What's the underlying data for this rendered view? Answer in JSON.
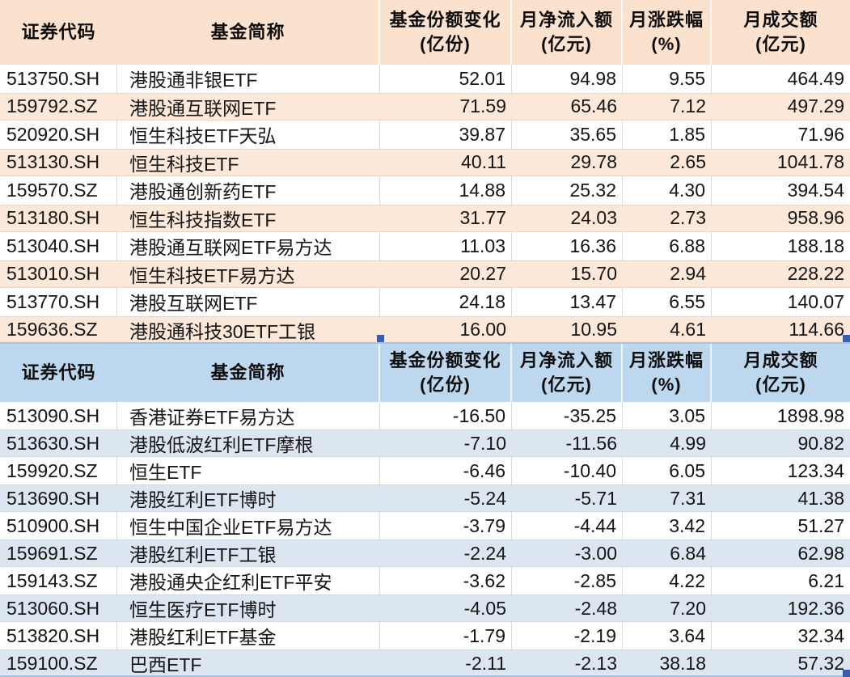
{
  "colors": {
    "table1_header_bg": "#fbe2cf",
    "table1_stripe_bg": "#fce8d9",
    "table1_stripe_border": "#ecd4c2",
    "table2_header_bg": "#bdd7ee",
    "table2_stripe_bg": "#dce6f1",
    "table2_stripe_border": "#c8d6e5",
    "gridline": "#d9d9d9",
    "selection_line": "#9dc3e6",
    "selection_handle": "#3c5ea9"
  },
  "columns": [
    {
      "key": "code",
      "label": "证券代码",
      "label2": ""
    },
    {
      "key": "name",
      "label": "基金简称",
      "label2": ""
    },
    {
      "key": "share_change",
      "label": "基金份额变化",
      "label2": "(亿份)"
    },
    {
      "key": "net_inflow",
      "label": "月净流入额",
      "label2": "(亿元)"
    },
    {
      "key": "pct_change",
      "label": "月涨跌幅",
      "label2": "(%)"
    },
    {
      "key": "turnover",
      "label": "月成交额",
      "label2": "(亿元)"
    }
  ],
  "tables": [
    {
      "name": "monthly-inflow-table",
      "rows": [
        {
          "code": "513750.SH",
          "name": "港股通非银ETF",
          "share_change": "52.01",
          "net_inflow": "94.98",
          "pct_change": "9.55",
          "turnover": "464.49"
        },
        {
          "code": "159792.SZ",
          "name": "港股通互联网ETF",
          "share_change": "71.59",
          "net_inflow": "65.46",
          "pct_change": "7.12",
          "turnover": "497.29"
        },
        {
          "code": "520920.SH",
          "name": "恒生科技ETF天弘",
          "share_change": "39.87",
          "net_inflow": "35.65",
          "pct_change": "1.85",
          "turnover": "71.96"
        },
        {
          "code": "513130.SH",
          "name": "恒生科技ETF",
          "share_change": "40.11",
          "net_inflow": "29.78",
          "pct_change": "2.65",
          "turnover": "1041.78"
        },
        {
          "code": "159570.SZ",
          "name": "港股通创新药ETF",
          "share_change": "14.88",
          "net_inflow": "25.32",
          "pct_change": "4.30",
          "turnover": "394.54"
        },
        {
          "code": "513180.SH",
          "name": "恒生科技指数ETF",
          "share_change": "31.77",
          "net_inflow": "24.03",
          "pct_change": "2.73",
          "turnover": "958.96"
        },
        {
          "code": "513040.SH",
          "name": "港股通互联网ETF易方达",
          "share_change": "11.03",
          "net_inflow": "16.36",
          "pct_change": "6.88",
          "turnover": "188.18"
        },
        {
          "code": "513010.SH",
          "name": "恒生科技ETF易方达",
          "share_change": "20.27",
          "net_inflow": "15.70",
          "pct_change": "2.94",
          "turnover": "228.22"
        },
        {
          "code": "513770.SH",
          "name": "港股互联网ETF",
          "share_change": "24.18",
          "net_inflow": "13.47",
          "pct_change": "6.55",
          "turnover": "140.07"
        },
        {
          "code": "159636.SZ",
          "name": "港股通科技30ETF工银",
          "share_change": "16.00",
          "net_inflow": "10.95",
          "pct_change": "4.61",
          "turnover": "114.66"
        }
      ]
    },
    {
      "name": "monthly-outflow-table",
      "rows": [
        {
          "code": "513090.SH",
          "name": "香港证券ETF易方达",
          "share_change": "-16.50",
          "net_inflow": "-35.25",
          "pct_change": "3.05",
          "turnover": "1898.98"
        },
        {
          "code": "513630.SH",
          "name": "港股低波红利ETF摩根",
          "share_change": "-7.10",
          "net_inflow": "-11.56",
          "pct_change": "4.99",
          "turnover": "90.82"
        },
        {
          "code": "159920.SZ",
          "name": "恒生ETF",
          "share_change": "-6.46",
          "net_inflow": "-10.40",
          "pct_change": "6.05",
          "turnover": "123.34"
        },
        {
          "code": "513690.SH",
          "name": "港股红利ETF博时",
          "share_change": "-5.24",
          "net_inflow": "-5.71",
          "pct_change": "7.31",
          "turnover": "41.38"
        },
        {
          "code": "510900.SH",
          "name": "恒生中国企业ETF易方达",
          "share_change": "-3.79",
          "net_inflow": "-4.44",
          "pct_change": "3.42",
          "turnover": "51.27"
        },
        {
          "code": "159691.SZ",
          "name": "港股红利ETF工银",
          "share_change": "-2.24",
          "net_inflow": "-3.00",
          "pct_change": "6.84",
          "turnover": "62.98"
        },
        {
          "code": "159143.SZ",
          "name": "港股通央企红利ETF平安",
          "share_change": "-3.62",
          "net_inflow": "-2.85",
          "pct_change": "4.22",
          "turnover": "6.21"
        },
        {
          "code": "513060.SH",
          "name": "恒生医疗ETF博时",
          "share_change": "-4.05",
          "net_inflow": "-2.48",
          "pct_change": "7.20",
          "turnover": "192.36"
        },
        {
          "code": "513820.SH",
          "name": "港股红利ETF基金",
          "share_change": "-1.79",
          "net_inflow": "-2.19",
          "pct_change": "3.64",
          "turnover": "32.34"
        },
        {
          "code": "159100.SZ",
          "name": "巴西ETF",
          "share_change": "-2.11",
          "net_inflow": "-2.13",
          "pct_change": "38.18",
          "turnover": "57.32"
        }
      ]
    }
  ]
}
